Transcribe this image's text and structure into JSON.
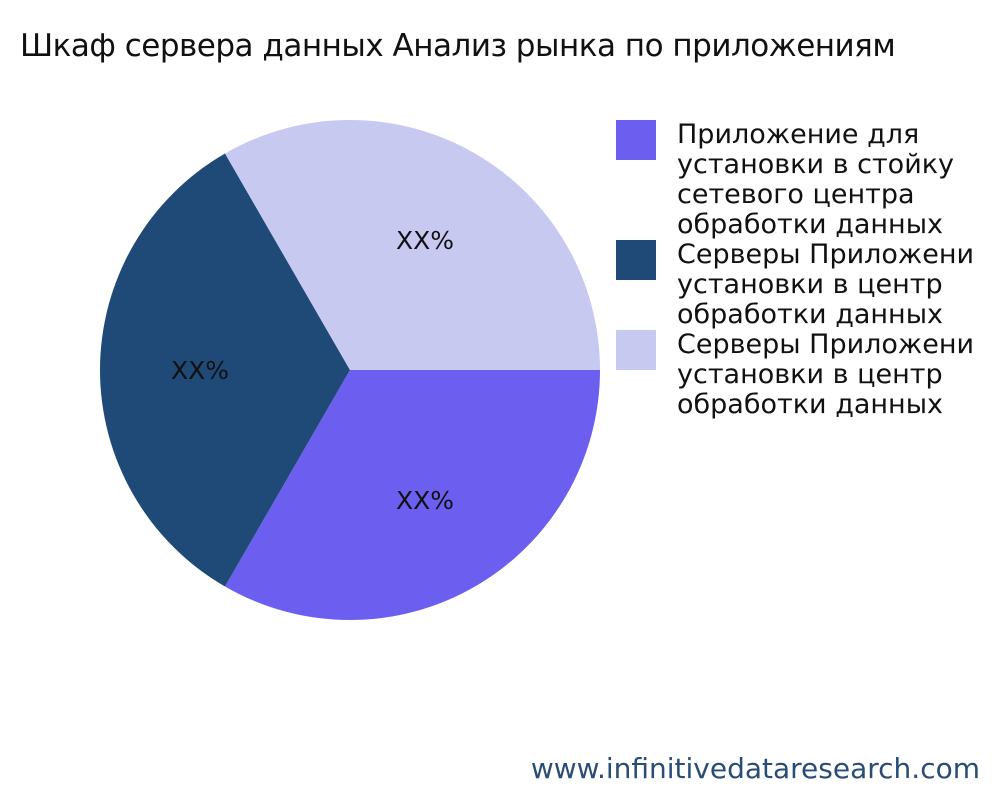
{
  "chart_data": {
    "type": "pie",
    "title": "Шкаф сервера данных Анализ рынка по приложениям",
    "slices": [
      {
        "label_lines": [
          "Приложение для",
          "установки в стойку",
          "сетевого центра",
          "обработки данных"
        ],
        "value": 33.33,
        "data_label": "XX%",
        "color": "#6c5ff0"
      },
      {
        "label_lines": [
          "Серверы Приложени",
          "установки в центр",
          "обработки данных"
        ],
        "value": 33.33,
        "data_label": "XX%",
        "color": "#1f4a78"
      },
      {
        "label_lines": [
          "Серверы Приложени",
          "установки в центр",
          "обработки данных"
        ],
        "value": 33.33,
        "data_label": "XX%",
        "color": "#c8c9f0"
      }
    ],
    "legend_position": "right"
  },
  "footer": "www.infinitivedataresearch.com"
}
